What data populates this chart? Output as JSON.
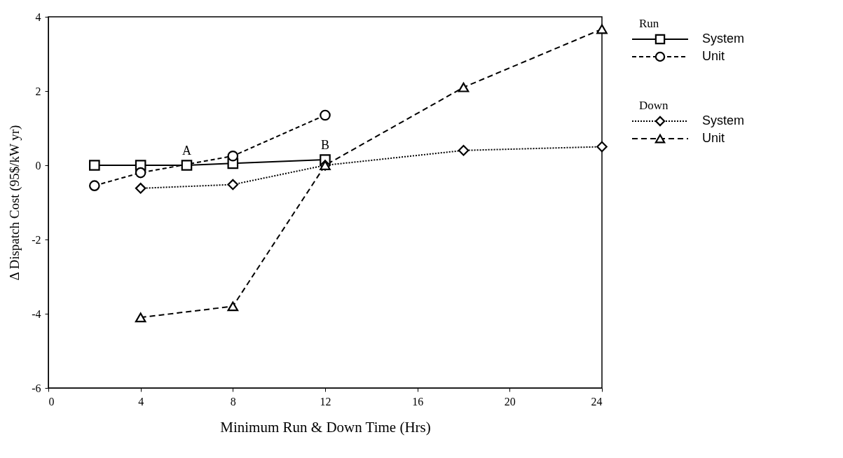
{
  "chart_data": {
    "type": "line",
    "xlabel": "Minimum Run & Down Time (Hrs)",
    "ylabel": "Δ Dispatch Cost (95$/kW yr)",
    "xlim": [
      0,
      24
    ],
    "xticks": [
      0,
      4,
      8,
      12,
      16,
      20,
      24
    ],
    "ylim": [
      -6,
      4
    ],
    "yticks": [
      -6,
      -4,
      -2,
      0,
      2,
      4
    ],
    "grid": false,
    "legend": "right",
    "annotations": [
      "Run",
      "Down",
      {
        "text": "A",
        "x": 6,
        "y": 0
      },
      {
        "text": "B",
        "x": 12,
        "y": 0.15
      }
    ],
    "series": [
      {
        "name": "System",
        "color": "#000000",
        "marker": "square",
        "line_style": "solid",
        "x": [
          2,
          4,
          6,
          8,
          12
        ],
        "values": [
          0,
          0,
          0,
          0.05,
          0.15
        ]
      },
      {
        "name": "Unit",
        "color": "#000000",
        "marker": "circle",
        "line_style": "dashed",
        "x": [
          2,
          4,
          8,
          12
        ],
        "values": [
          -0.55,
          -0.2,
          0.25,
          1.35
        ]
      },
      {
        "name": "System",
        "color": "#000000",
        "marker": "diamond",
        "line_style": "dotted",
        "x": [
          4,
          8,
          12,
          18,
          24
        ],
        "values": [
          -0.62,
          -0.52,
          0,
          0.4,
          0.5
        ]
      },
      {
        "name": "Unit",
        "color": "#000000",
        "marker": "triangle",
        "line_style": "dashed",
        "x": [
          4,
          8,
          12,
          18,
          24
        ],
        "values": [
          -4.1,
          -3.8,
          0,
          2.1,
          3.67
        ]
      }
    ]
  }
}
